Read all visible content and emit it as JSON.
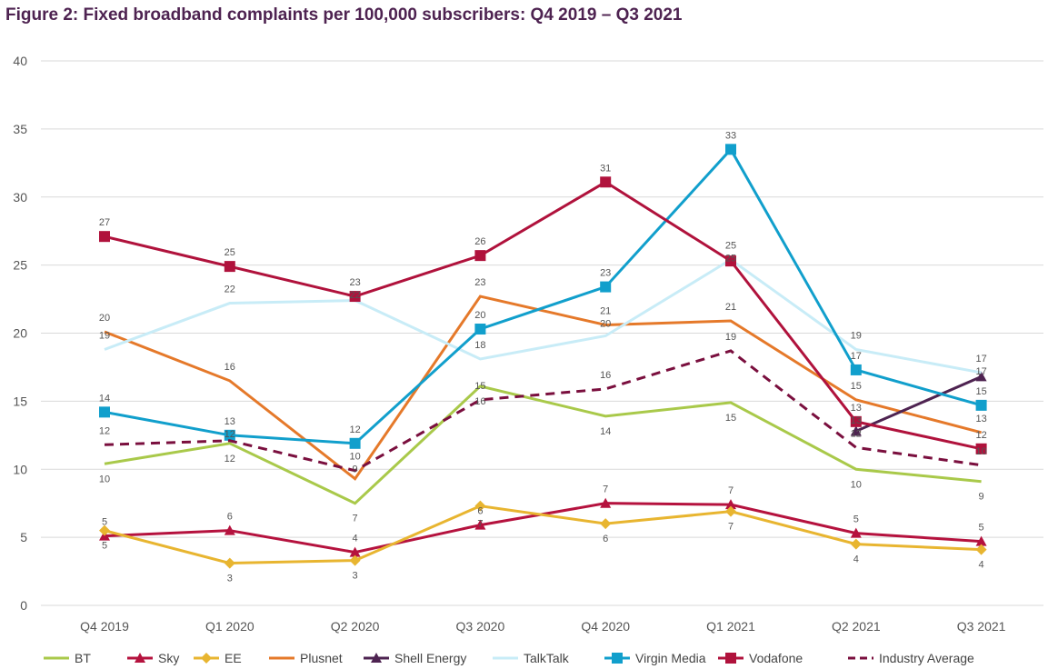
{
  "chart_data": {
    "type": "line",
    "title": "Figure 2: Fixed broadband complaints per 100,000 subscribers: Q4 2019 – Q3 2021",
    "categories": [
      "Q4 2019",
      "Q1 2020",
      "Q2 2020",
      "Q3 2020",
      "Q4 2020",
      "Q1 2021",
      "Q2 2021",
      "Q3 2021"
    ],
    "ylim": [
      0,
      40
    ],
    "yticks": [
      0,
      5,
      10,
      15,
      20,
      25,
      30,
      35,
      40
    ],
    "grid": true,
    "legend": "bottom",
    "series": [
      {
        "name": "BT",
        "color": "#a9c94a",
        "marker": "none",
        "dash": false,
        "values": [
          10.4,
          11.9,
          7.5,
          16.1,
          13.9,
          14.9,
          10.0,
          9.1
        ],
        "labels": [
          "10",
          "12",
          "7",
          "16",
          "14",
          "15",
          "10",
          "9"
        ]
      },
      {
        "name": "Sky",
        "color": "#b5123e",
        "marker": "triangle",
        "dash": false,
        "values": [
          5.1,
          5.5,
          3.9,
          5.9,
          7.5,
          7.4,
          5.3,
          4.7
        ],
        "labels": [
          "5",
          "6",
          "4",
          "6",
          "7",
          "7",
          "5",
          "5"
        ]
      },
      {
        "name": "EE",
        "color": "#e8b530",
        "marker": "diamond",
        "dash": false,
        "values": [
          5.5,
          3.1,
          3.3,
          7.3,
          6.0,
          6.9,
          4.5,
          4.1
        ],
        "labels": [
          "5",
          "3",
          "3",
          "7",
          "6",
          "7",
          "4",
          "4"
        ]
      },
      {
        "name": "Plusnet",
        "color": "#e5792a",
        "marker": "none",
        "dash": false,
        "values": [
          20.1,
          16.5,
          9.3,
          22.7,
          20.6,
          20.9,
          15.1,
          12.7
        ],
        "labels": [
          "20",
          "16",
          "9",
          "23",
          "21",
          "21",
          "15",
          "13"
        ]
      },
      {
        "name": "Shell Energy",
        "color": "#4e2351",
        "marker": "triangle",
        "dash": false,
        "values": [
          null,
          null,
          null,
          null,
          null,
          null,
          12.8,
          16.8
        ],
        "labels": [
          null,
          null,
          null,
          null,
          null,
          null,
          "13",
          "17"
        ]
      },
      {
        "name": "TalkTalk",
        "color": "#c8ecf7",
        "marker": "none",
        "dash": false,
        "values": [
          18.8,
          22.2,
          22.4,
          18.1,
          19.8,
          25.4,
          18.8,
          17.1
        ],
        "labels": [
          "19",
          "22",
          "22",
          "18",
          "20",
          "25",
          "19",
          "17"
        ]
      },
      {
        "name": "Virgin Media",
        "color": "#119fcc",
        "marker": "square",
        "dash": false,
        "values": [
          14.2,
          12.5,
          11.9,
          20.3,
          23.4,
          33.5,
          17.3,
          14.7
        ],
        "labels": [
          "14",
          "13",
          "12",
          "20",
          "23",
          "33",
          "17",
          "15"
        ]
      },
      {
        "name": "Vodafone",
        "color": "#b0123c",
        "marker": "square",
        "dash": false,
        "values": [
          27.1,
          24.9,
          22.7,
          25.7,
          31.1,
          25.3,
          13.5,
          11.5
        ],
        "labels": [
          "27",
          "25",
          "23",
          "26",
          "31",
          "25",
          "13",
          "12"
        ]
      },
      {
        "name": "Industry Average",
        "color": "#7a0f3e",
        "marker": "none",
        "dash": true,
        "values": [
          11.8,
          12.1,
          9.9,
          15.1,
          15.9,
          18.7,
          11.6,
          10.3
        ],
        "labels": [
          "12",
          "12",
          "10",
          "15",
          "16",
          "19",
          "12",
          "10"
        ]
      }
    ]
  }
}
